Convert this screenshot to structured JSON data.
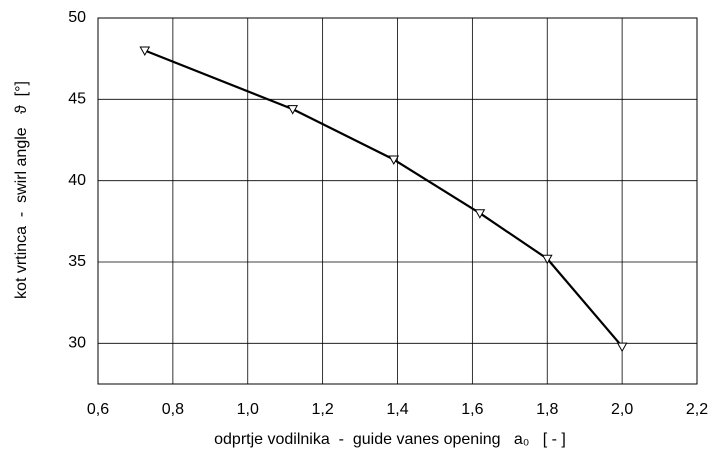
{
  "chart_data": {
    "type": "line",
    "xlabel": "odprtje vodilnika  -  guide vanes opening   a₀   [ - ]",
    "ylabel": "kot vrtinca  -  swirl angle   ϑ  [°]",
    "x": [
      0.725,
      1.12,
      1.39,
      1.62,
      1.8,
      2.0
    ],
    "series": [
      {
        "color": "#000000",
        "values": [
          48.0,
          44.4,
          41.3,
          38.0,
          35.2,
          29.8
        ]
      }
    ],
    "xlim": [
      0.6,
      2.2
    ],
    "xticks": [
      {
        "value": 0.6,
        "label": "0,6"
      },
      {
        "value": 0.8,
        "label": "0,8"
      },
      {
        "value": 1.0,
        "label": "1,0"
      },
      {
        "value": 1.2,
        "label": "1,2"
      },
      {
        "value": 1.4,
        "label": "1,4"
      },
      {
        "value": 1.6,
        "label": "1,6"
      },
      {
        "value": 1.8,
        "label": "1,8"
      },
      {
        "value": 2.0,
        "label": "2,0"
      },
      {
        "value": 2.2,
        "label": "2,2"
      }
    ],
    "ylim": [
      27.5,
      50
    ],
    "yticks": [
      30,
      35,
      40,
      45,
      50
    ],
    "grid": true
  }
}
